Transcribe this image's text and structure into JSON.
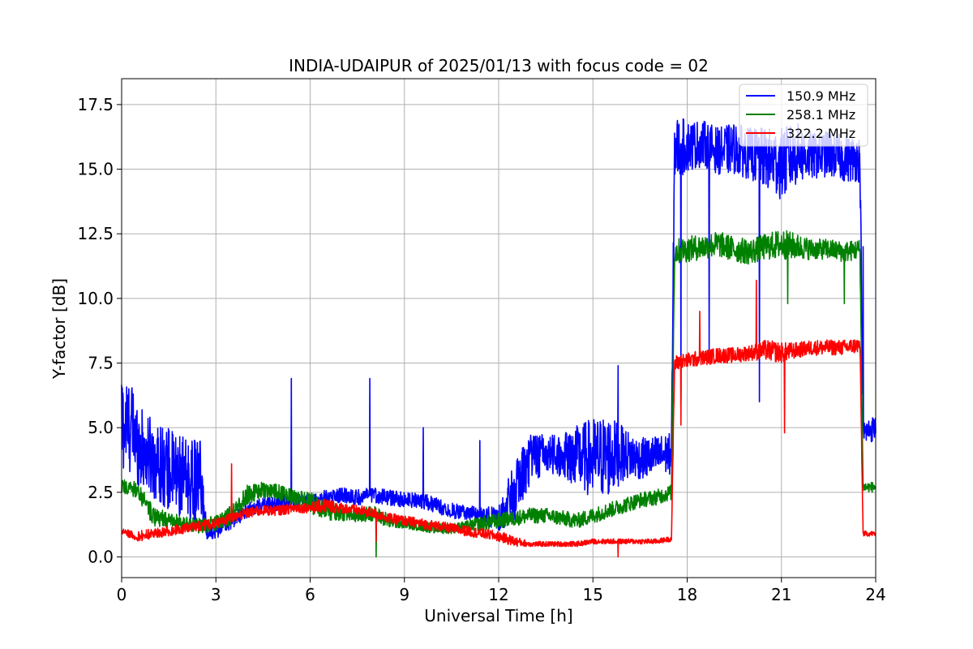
{
  "chart_data": {
    "type": "line",
    "title": "INDIA-UDAIPUR of 2025/01/13 with focus code = 02",
    "xlabel": "Universal Time [h]",
    "ylabel": "Y-factor [dB]",
    "xlim": [
      0,
      24
    ],
    "ylim": [
      -0.8,
      18.5
    ],
    "xticks": [
      0,
      3,
      6,
      9,
      12,
      15,
      18,
      21,
      24
    ],
    "yticks": [
      0.0,
      2.5,
      5.0,
      7.5,
      10.0,
      12.5,
      15.0,
      17.5
    ],
    "xtick_labels": [
      "0",
      "3",
      "6",
      "9",
      "12",
      "15",
      "18",
      "21",
      "24"
    ],
    "ytick_labels": [
      "0.0",
      "2.5",
      "5.0",
      "7.5",
      "10.0",
      "12.5",
      "15.0",
      "17.5"
    ],
    "grid": true,
    "legend_position": "top-right",
    "series": [
      {
        "name": "150.9 MHz",
        "color": "#0000ff",
        "x": [
          0,
          0.3,
          0.6,
          1.0,
          1.5,
          2.0,
          2.5,
          2.7,
          3.0,
          3.5,
          4.0,
          4.5,
          5.0,
          5.5,
          6.0,
          6.5,
          7.0,
          7.5,
          8.0,
          8.5,
          9.0,
          9.5,
          10.0,
          10.5,
          11.0,
          11.5,
          12.0,
          12.5,
          13.0,
          13.5,
          14.0,
          14.5,
          15.0,
          15.5,
          16.0,
          16.5,
          17.0,
          17.5,
          17.6,
          18.0,
          18.5,
          19.0,
          19.5,
          20.0,
          20.5,
          21.0,
          21.5,
          22.0,
          22.5,
          23.0,
          23.5,
          23.6,
          24.0
        ],
        "y": [
          5.2,
          5.0,
          4.2,
          3.8,
          3.4,
          3.0,
          2.9,
          1.0,
          1.0,
          1.4,
          1.8,
          2.0,
          2.1,
          2.2,
          2.1,
          2.3,
          2.4,
          2.3,
          2.4,
          2.3,
          2.2,
          2.2,
          2.0,
          1.8,
          1.7,
          1.6,
          1.5,
          2.5,
          3.8,
          4.0,
          3.9,
          3.9,
          3.8,
          3.9,
          4.0,
          3.8,
          3.9,
          4.0,
          15.8,
          15.9,
          16.0,
          15.7,
          15.8,
          15.6,
          15.4,
          15.2,
          15.6,
          15.5,
          15.6,
          15.4,
          15.4,
          4.8,
          5.0
        ],
        "noise": [
          2.0,
          1.8,
          1.6,
          1.5,
          1.6,
          1.6,
          1.6,
          0.3,
          0.3,
          0.3,
          0.3,
          0.3,
          0.3,
          0.3,
          0.3,
          0.3,
          0.3,
          0.3,
          0.3,
          0.3,
          0.3,
          0.3,
          0.3,
          0.3,
          0.3,
          0.3,
          0.5,
          1.2,
          1.0,
          0.8,
          0.8,
          1.2,
          1.6,
          1.6,
          1.0,
          0.8,
          0.8,
          0.8,
          1.3,
          1.0,
          0.9,
          0.9,
          1.0,
          1.0,
          1.2,
          1.4,
          1.2,
          0.9,
          0.9,
          0.9,
          0.9,
          0.5,
          0.5
        ]
      },
      {
        "name": "258.1 MHz",
        "color": "#008000",
        "x": [
          0,
          0.5,
          1.0,
          1.5,
          2.0,
          2.5,
          3.0,
          3.5,
          4.0,
          4.5,
          5.0,
          5.5,
          6.0,
          6.5,
          7.0,
          7.5,
          8.0,
          8.5,
          9.0,
          9.5,
          10.0,
          10.5,
          11.0,
          11.5,
          12.0,
          12.5,
          13.0,
          13.5,
          14.0,
          14.5,
          15.0,
          15.5,
          16.0,
          16.5,
          17.0,
          17.5,
          17.6,
          18.0,
          18.5,
          19.0,
          19.5,
          20.0,
          20.5,
          21.0,
          21.5,
          22.0,
          22.5,
          23.0,
          23.5,
          23.6,
          24.0
        ],
        "y": [
          2.7,
          2.6,
          1.6,
          1.4,
          1.3,
          1.2,
          1.3,
          1.6,
          2.4,
          2.6,
          2.5,
          2.3,
          2.1,
          1.8,
          1.7,
          1.6,
          1.7,
          1.4,
          1.3,
          1.2,
          1.1,
          1.1,
          1.2,
          1.3,
          1.4,
          1.5,
          1.6,
          1.6,
          1.5,
          1.4,
          1.6,
          1.8,
          2.0,
          2.2,
          2.3,
          2.5,
          11.8,
          11.9,
          12.0,
          12.1,
          11.9,
          11.8,
          12.0,
          12.1,
          12.0,
          11.9,
          11.9,
          11.8,
          11.9,
          2.7,
          2.7
        ],
        "noise": [
          0.3,
          0.3,
          0.4,
          0.3,
          0.3,
          0.3,
          0.3,
          0.4,
          0.4,
          0.3,
          0.3,
          0.3,
          0.4,
          0.4,
          0.3,
          0.3,
          0.3,
          0.3,
          0.2,
          0.2,
          0.2,
          0.2,
          0.2,
          0.3,
          0.3,
          0.3,
          0.3,
          0.3,
          0.3,
          0.3,
          0.3,
          0.3,
          0.3,
          0.3,
          0.3,
          0.3,
          0.5,
          0.5,
          0.5,
          0.5,
          0.5,
          0.5,
          0.5,
          0.6,
          0.5,
          0.4,
          0.4,
          0.4,
          0.4,
          0.2,
          0.2
        ]
      },
      {
        "name": "322.2 MHz",
        "color": "#ff0000",
        "x": [
          0,
          0.5,
          1.0,
          1.5,
          2.0,
          2.5,
          3.0,
          3.5,
          4.0,
          4.5,
          5.0,
          5.5,
          6.0,
          6.5,
          7.0,
          7.5,
          8.0,
          8.5,
          9.0,
          9.5,
          10.0,
          10.5,
          11.0,
          11.5,
          12.0,
          12.5,
          13.0,
          13.5,
          14.0,
          14.5,
          15.0,
          15.5,
          16.0,
          16.5,
          17.0,
          17.5,
          17.6,
          18.0,
          18.5,
          19.0,
          19.5,
          20.0,
          20.5,
          21.0,
          21.5,
          22.0,
          22.5,
          23.0,
          23.5,
          23.6,
          24.0
        ],
        "y": [
          1.0,
          0.8,
          0.9,
          1.0,
          1.1,
          1.2,
          1.3,
          1.5,
          1.7,
          1.8,
          1.8,
          1.9,
          1.9,
          2.0,
          1.9,
          1.8,
          1.7,
          1.5,
          1.4,
          1.3,
          1.2,
          1.1,
          1.0,
          0.9,
          0.8,
          0.6,
          0.5,
          0.5,
          0.5,
          0.5,
          0.6,
          0.6,
          0.6,
          0.6,
          0.6,
          0.7,
          7.5,
          7.6,
          7.7,
          7.8,
          7.8,
          7.9,
          8.0,
          7.9,
          8.0,
          8.1,
          8.1,
          8.1,
          8.2,
          0.9,
          0.9
        ],
        "noise": [
          0.1,
          0.2,
          0.2,
          0.2,
          0.2,
          0.2,
          0.2,
          0.2,
          0.2,
          0.2,
          0.2,
          0.2,
          0.2,
          0.3,
          0.2,
          0.2,
          0.2,
          0.2,
          0.2,
          0.2,
          0.2,
          0.2,
          0.2,
          0.2,
          0.2,
          0.2,
          0.1,
          0.1,
          0.1,
          0.1,
          0.1,
          0.1,
          0.1,
          0.1,
          0.1,
          0.1,
          0.3,
          0.3,
          0.3,
          0.3,
          0.3,
          0.3,
          0.4,
          0.4,
          0.3,
          0.3,
          0.3,
          0.3,
          0.3,
          0.1,
          0.1
        ]
      }
    ],
    "spikes": [
      {
        "series": 0,
        "x": 5.4,
        "y": 6.9
      },
      {
        "series": 0,
        "x": 7.9,
        "y": 6.9
      },
      {
        "series": 0,
        "x": 9.6,
        "y": 5.0
      },
      {
        "series": 0,
        "x": 11.4,
        "y": 4.5
      },
      {
        "series": 0,
        "x": 15.8,
        "y": 7.4
      },
      {
        "series": 0,
        "x": 17.8,
        "y": 6.0
      },
      {
        "series": 0,
        "x": 18.7,
        "y": 8.0
      },
      {
        "series": 0,
        "x": 20.3,
        "y": 6.0
      },
      {
        "series": 0,
        "x": 23.6,
        "y": 12.0
      },
      {
        "series": 1,
        "x": 8.1,
        "y": 0.0
      },
      {
        "series": 1,
        "x": 21.2,
        "y": 9.8
      },
      {
        "series": 1,
        "x": 23.0,
        "y": 9.8
      },
      {
        "series": 2,
        "x": 3.5,
        "y": 3.6
      },
      {
        "series": 2,
        "x": 8.1,
        "y": 0.6
      },
      {
        "series": 2,
        "x": 15.8,
        "y": 0.0
      },
      {
        "series": 2,
        "x": 18.4,
        "y": 9.5
      },
      {
        "series": 2,
        "x": 20.2,
        "y": 10.7
      },
      {
        "series": 2,
        "x": 21.1,
        "y": 4.8
      },
      {
        "series": 2,
        "x": 17.8,
        "y": 5.1
      }
    ]
  }
}
